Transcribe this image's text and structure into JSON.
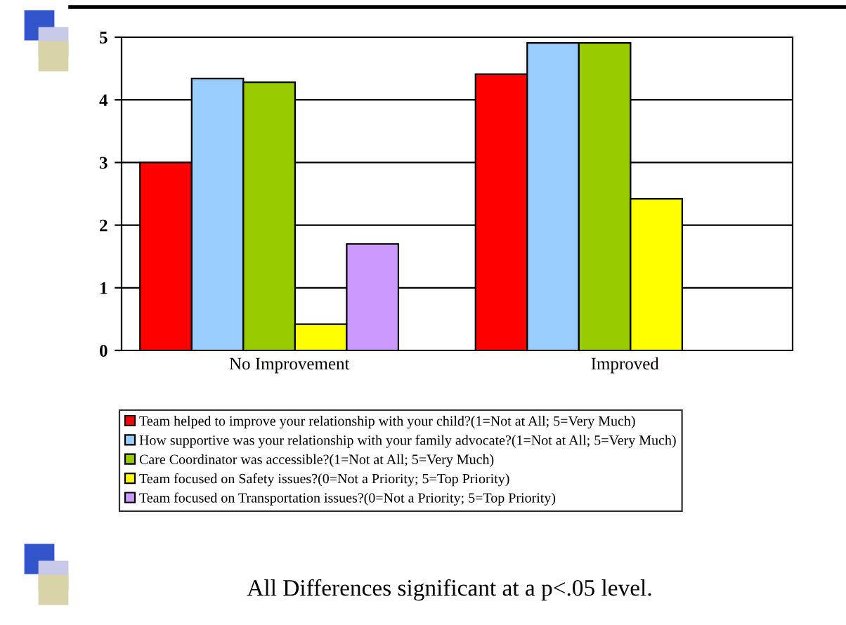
{
  "chart_data": {
    "type": "bar",
    "categories": [
      "No Improvement",
      "Improved"
    ],
    "series": [
      {
        "name": "Team helped to improve your relationship with your child?(1=Not at All; 5=Very Much)",
        "color": "#ff0000",
        "values": [
          3.0,
          4.41
        ]
      },
      {
        "name": "How supportive was your relationship with your family advocate?(1=Not at All; 5=Very Much)",
        "color": "#99ccff",
        "values": [
          4.34,
          4.91
        ]
      },
      {
        "name": "Care Coordinator was accessible?(1=Not at All; 5=Very Much)",
        "color": "#99cc00",
        "values": [
          4.28,
          4.91
        ]
      },
      {
        "name": "Team focused on Safety issues?(0=Not a Priority; 5=Top Priority)",
        "color": "#ffff00",
        "values": [
          0.42,
          2.42
        ]
      },
      {
        "name": "Team focused on Transportation issues?(0=Not a Priority; 5=Top Priority)",
        "color": "#cc99ff",
        "values": [
          1.7,
          null
        ]
      }
    ],
    "ylim": [
      0,
      5
    ],
    "yticks": [
      0,
      1,
      2,
      3,
      4,
      5
    ],
    "grid": "y",
    "legend": "bottom",
    "annotations": [
      "All Differences significant at a p<.05 level."
    ]
  }
}
